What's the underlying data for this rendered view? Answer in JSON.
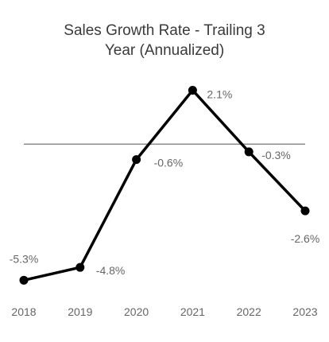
{
  "chart_data": {
    "type": "line",
    "title": "Sales Growth Rate - Trailing 3",
    "title_line2": "Year (Annualized)",
    "xlabel": "",
    "ylabel": "",
    "categories": [
      "2018",
      "2019",
      "2020",
      "2021",
      "2022",
      "2023"
    ],
    "series": [
      {
        "values": [
          -5.3,
          -4.8,
          -0.6,
          2.1,
          -0.3,
          -2.6
        ]
      }
    ],
    "data_labels": [
      "-5.3%",
      "-4.8%",
      "-0.6%",
      "2.1%",
      "-0.3%",
      "-2.6%"
    ],
    "ylim": [
      -5.6,
      2.3
    ],
    "reference_line_y": 0,
    "grid": false,
    "legend": "none",
    "colors": {
      "line": "#000000",
      "reference_line": "#8c8c8c",
      "text": "#666666",
      "title": "#3a3a3a"
    }
  }
}
